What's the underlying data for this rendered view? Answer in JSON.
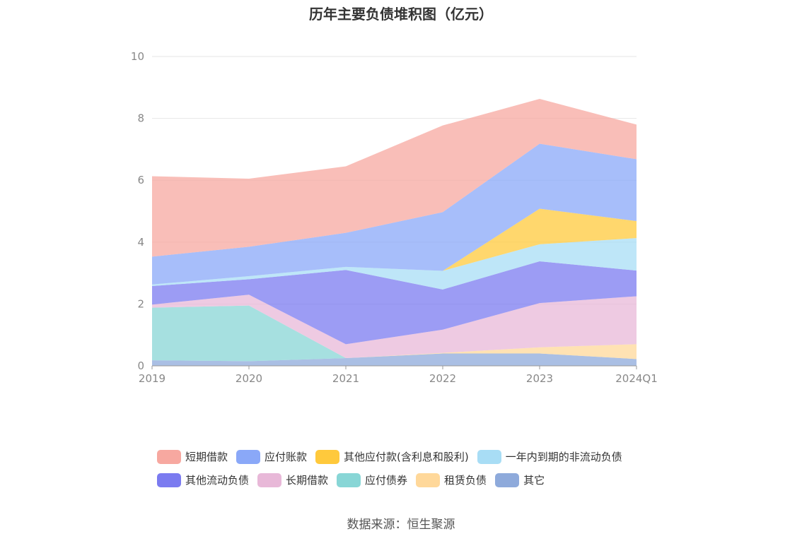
{
  "title": "历年主要负债堆积图（亿元）",
  "source": "数据来源：恒生聚源",
  "chart_data": {
    "type": "area",
    "stacked": true,
    "categories": [
      "2019",
      "2020",
      "2021",
      "2022",
      "2023",
      "2024Q1"
    ],
    "ylim": [
      0,
      10
    ],
    "yticks": [
      0,
      2,
      4,
      6,
      8,
      10
    ],
    "grid": true,
    "legend_position": "bottom",
    "series": [
      {
        "name": "其它",
        "color": "#8eaadb",
        "values": [
          0.18,
          0.15,
          0.25,
          0.4,
          0.4,
          0.22
        ]
      },
      {
        "name": "租赁负债",
        "color": "#ffd89a",
        "values": [
          0,
          0,
          0,
          0.02,
          0.2,
          0.48
        ]
      },
      {
        "name": "应付债券",
        "color": "#88d6d6",
        "values": [
          1.7,
          1.8,
          0,
          0,
          0,
          0
        ]
      },
      {
        "name": "长期借款",
        "color": "#e8b8d8",
        "values": [
          0.1,
          0.35,
          0.45,
          0.75,
          1.43,
          1.55
        ]
      },
      {
        "name": "其他流动负债",
        "color": "#7b7bf0",
        "values": [
          0.6,
          0.5,
          2.4,
          1.3,
          1.35,
          0.83
        ]
      },
      {
        "name": "一年内到期的非流动负债",
        "color": "#a8ddf5",
        "values": [
          0.05,
          0.1,
          0.1,
          0.6,
          0.55,
          1.05
        ]
      },
      {
        "name": "其他应付款(含利息和股利)",
        "color": "#ffc93c",
        "values": [
          0,
          0,
          0,
          0,
          1.15,
          0.55
        ]
      },
      {
        "name": "应付账款",
        "color": "#8aa8f8",
        "values": [
          0.9,
          0.95,
          1.1,
          1.9,
          2.1,
          2.0
        ]
      },
      {
        "name": "短期借款",
        "color": "#f7a8a0",
        "values": [
          2.6,
          2.2,
          2.15,
          2.8,
          1.45,
          1.12
        ]
      }
    ]
  },
  "legend_rows": [
    [
      {
        "label": "短期借款",
        "color": "#f7a8a0"
      },
      {
        "label": "应付账款",
        "color": "#8aa8f8"
      },
      {
        "label": "其他应付款(含利息和股利)",
        "color": "#ffc93c"
      },
      {
        "label": "一年内到期的非流动负债",
        "color": "#a8ddf5"
      }
    ],
    [
      {
        "label": "其他流动负债",
        "color": "#7b7bf0"
      },
      {
        "label": "长期借款",
        "color": "#e8b8d8"
      },
      {
        "label": "应付债券",
        "color": "#88d6d6"
      },
      {
        "label": "租赁负债",
        "color": "#ffd89a"
      },
      {
        "label": "其它",
        "color": "#8eaadb"
      }
    ]
  ]
}
